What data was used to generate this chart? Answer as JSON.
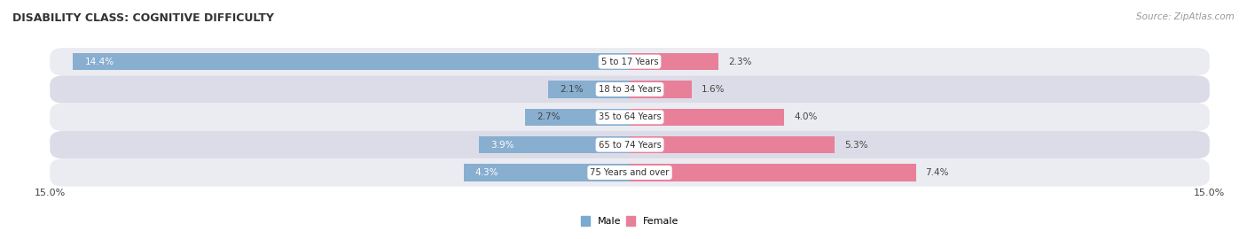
{
  "title": "DISABILITY CLASS: COGNITIVE DIFFICULTY",
  "source": "Source: ZipAtlas.com",
  "categories": [
    "5 to 17 Years",
    "18 to 34 Years",
    "35 to 64 Years",
    "65 to 74 Years",
    "75 Years and over"
  ],
  "male_values": [
    14.4,
    2.1,
    2.7,
    3.9,
    4.3
  ],
  "female_values": [
    2.3,
    1.6,
    4.0,
    5.3,
    7.4
  ],
  "male_color": "#88aed0",
  "female_color": "#e8809a",
  "x_max": 15.0,
  "bar_height": 0.62,
  "row_bg_light": "#ebebf2",
  "row_bg_dark": "#dcdce8",
  "label_color": "#444444",
  "title_color": "#333333",
  "source_color": "#999999",
  "legend_male_color": "#7aaad0",
  "legend_female_color": "#e8809a",
  "figwidth": 14.06,
  "figheight": 2.7,
  "dpi": 100
}
